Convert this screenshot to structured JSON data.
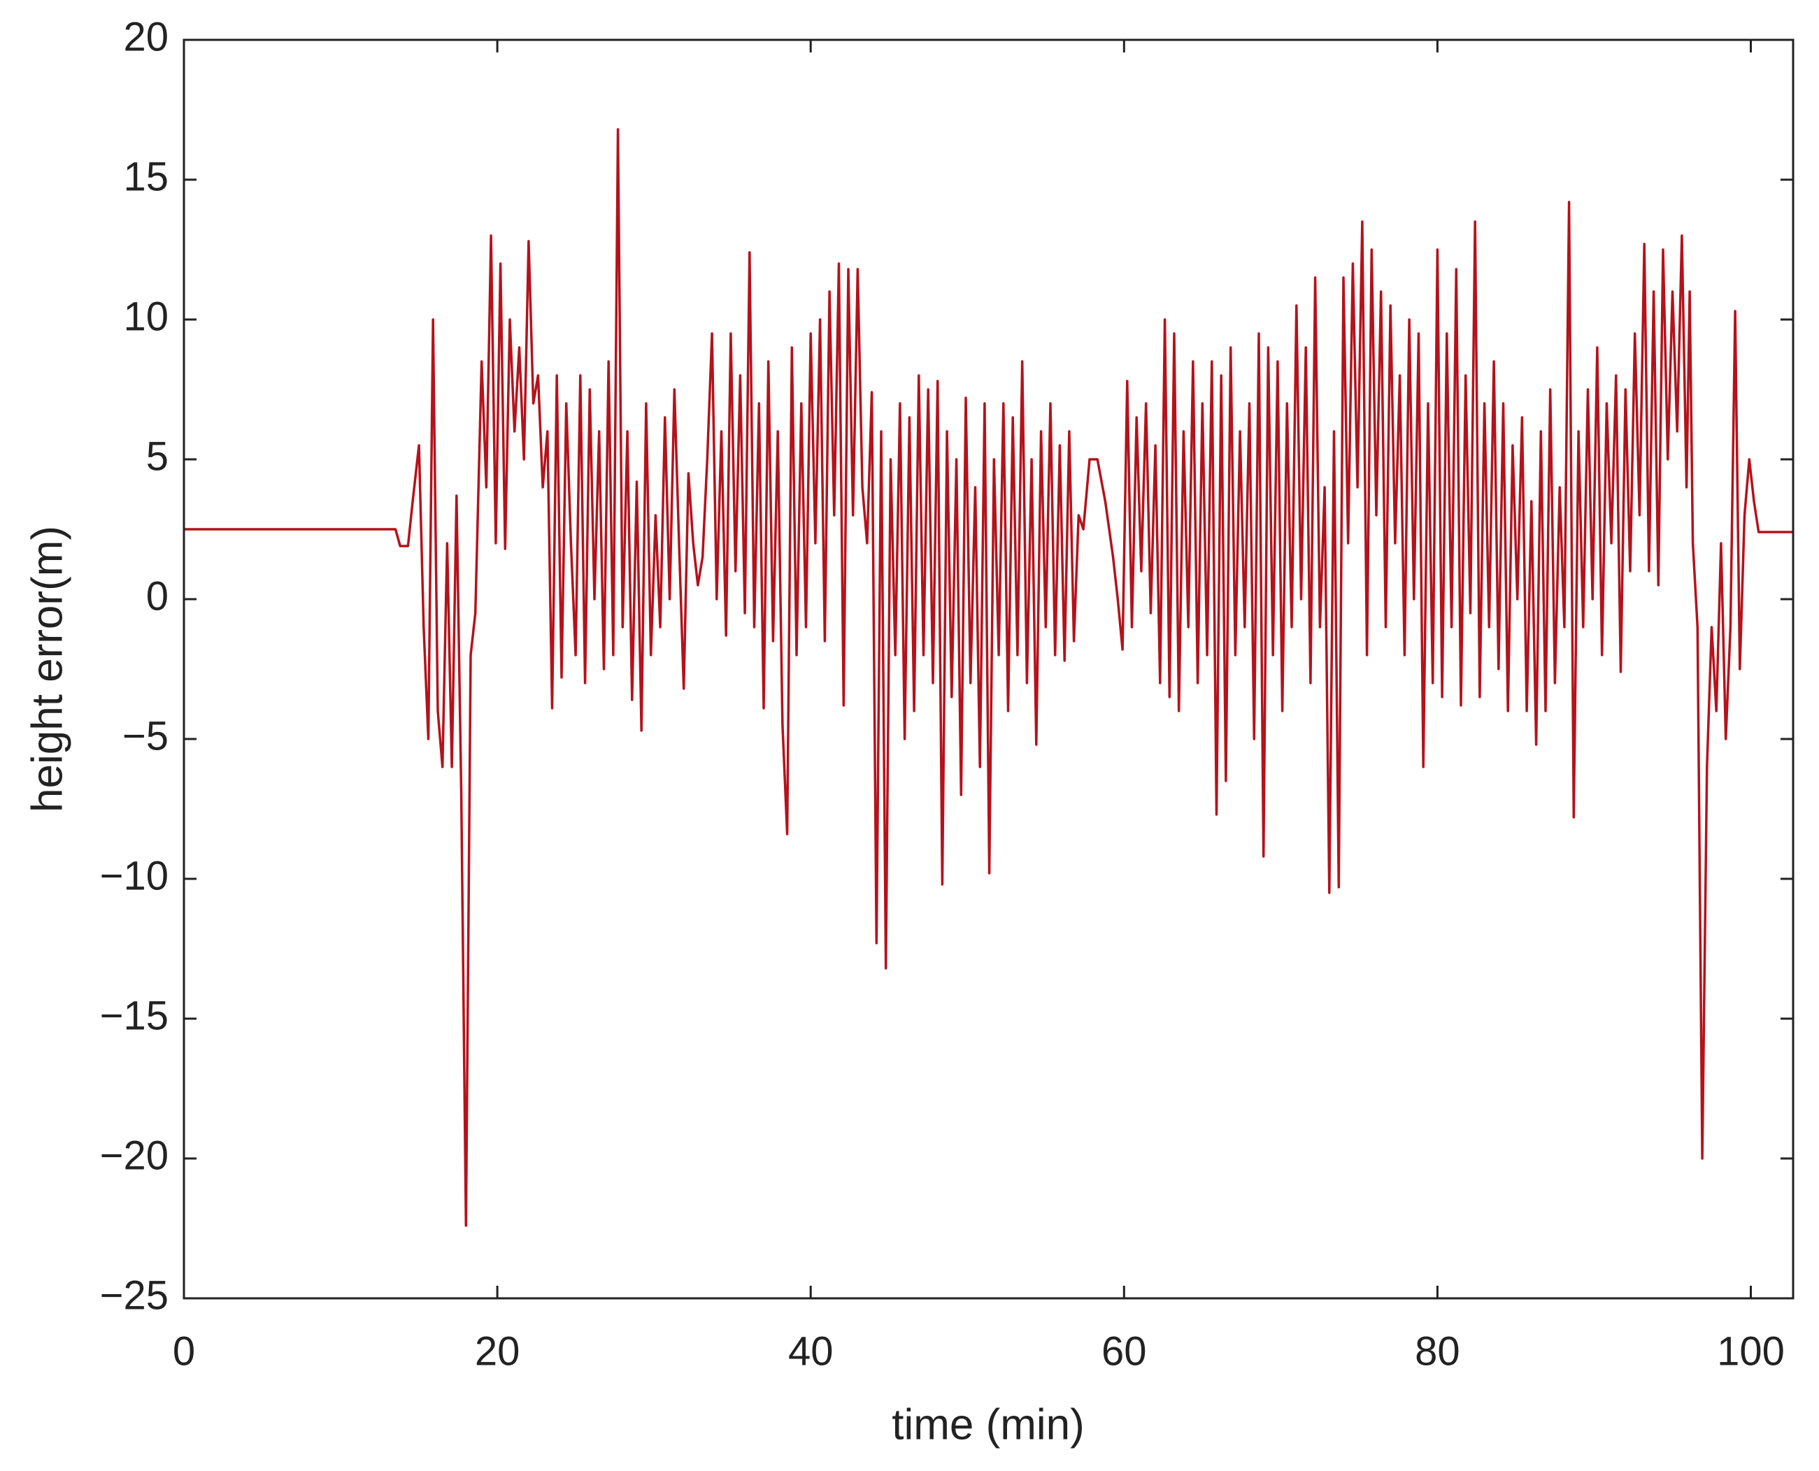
{
  "chart_data": {
    "type": "line",
    "xlabel": "time (min)",
    "ylabel": "height error(m)",
    "xlim": [
      0,
      102.7
    ],
    "ylim": [
      -25,
      20
    ],
    "xticks": [
      0,
      20,
      40,
      60,
      80,
      100
    ],
    "yticks": [
      {
        "value": -25,
        "label": "−25"
      },
      {
        "value": -20,
        "label": "−20"
      },
      {
        "value": -15,
        "label": "−15"
      },
      {
        "value": -10,
        "label": "−10"
      },
      {
        "value": -5,
        "label": "−5"
      },
      0,
      5,
      10,
      15,
      20
    ],
    "series": [
      {
        "color": "#b5121b",
        "x": [
          0,
          13.5,
          13.8,
          14.3,
          14.6,
          15.0,
          15.3,
          15.6,
          15.9,
          16.2,
          16.5,
          16.8,
          17.1,
          17.4,
          17.7,
          18.0,
          18.3,
          18.6,
          19.0,
          19.3,
          19.6,
          19.9,
          20.2,
          20.5,
          20.8,
          21.1,
          21.4,
          21.7,
          22.0,
          22.3,
          22.6,
          22.9,
          23.2,
          23.5,
          23.8,
          24.1,
          24.4,
          24.7,
          25.0,
          25.3,
          25.6,
          25.9,
          26.2,
          26.5,
          26.8,
          27.1,
          27.4,
          27.7,
          28.0,
          28.3,
          28.6,
          28.9,
          29.2,
          29.5,
          29.8,
          30.1,
          30.4,
          30.7,
          31.0,
          31.3,
          31.6,
          31.9,
          32.2,
          32.5,
          32.8,
          33.1,
          33.4,
          33.7,
          34.0,
          34.3,
          34.6,
          34.9,
          35.2,
          35.5,
          35.8,
          36.1,
          36.4,
          36.7,
          37.0,
          37.3,
          37.6,
          37.9,
          38.2,
          38.5,
          38.8,
          39.1,
          39.4,
          39.7,
          40.0,
          40.3,
          40.6,
          40.9,
          41.2,
          41.5,
          41.8,
          42.1,
          42.4,
          42.7,
          43.0,
          43.3,
          43.6,
          43.9,
          44.2,
          44.5,
          44.8,
          45.1,
          45.4,
          45.7,
          46.0,
          46.3,
          46.6,
          46.9,
          47.2,
          47.5,
          47.8,
          48.1,
          48.4,
          48.7,
          49.0,
          49.3,
          49.6,
          49.9,
          50.2,
          50.5,
          50.8,
          51.1,
          51.4,
          51.7,
          52.0,
          52.3,
          52.6,
          52.9,
          53.2,
          53.5,
          53.8,
          54.1,
          54.4,
          54.7,
          55.0,
          55.3,
          55.6,
          55.9,
          56.2,
          56.5,
          56.8,
          57.1,
          57.4,
          57.8,
          58.3,
          58.8,
          59.3,
          59.6,
          59.9,
          60.2,
          60.5,
          60.8,
          61.1,
          61.4,
          61.7,
          62.0,
          62.3,
          62.6,
          62.9,
          63.2,
          63.5,
          63.8,
          64.1,
          64.4,
          64.7,
          65.0,
          65.3,
          65.6,
          65.9,
          66.2,
          66.5,
          66.8,
          67.1,
          67.4,
          67.7,
          68.0,
          68.3,
          68.6,
          68.9,
          69.2,
          69.5,
          69.8,
          70.1,
          70.4,
          70.7,
          71.0,
          71.3,
          71.6,
          71.9,
          72.2,
          72.5,
          72.8,
          73.1,
          73.4,
          73.7,
          74.0,
          74.3,
          74.6,
          74.9,
          75.2,
          75.5,
          75.8,
          76.1,
          76.4,
          76.7,
          77.0,
          77.3,
          77.6,
          77.9,
          78.2,
          78.5,
          78.8,
          79.1,
          79.4,
          79.7,
          80.0,
          80.3,
          80.6,
          80.9,
          81.2,
          81.5,
          81.8,
          82.1,
          82.4,
          82.7,
          83.0,
          83.3,
          83.6,
          83.9,
          84.2,
          84.5,
          84.8,
          85.1,
          85.4,
          85.7,
          86.0,
          86.3,
          86.6,
          86.9,
          87.2,
          87.5,
          87.8,
          88.1,
          88.4,
          88.7,
          89.0,
          89.3,
          89.6,
          89.9,
          90.2,
          90.5,
          90.8,
          91.1,
          91.4,
          91.7,
          92.0,
          92.3,
          92.6,
          92.9,
          93.2,
          93.5,
          93.8,
          94.1,
          94.4,
          94.7,
          95.0,
          95.3,
          95.6,
          95.9,
          96.1,
          96.3,
          96.6,
          96.9,
          97.2,
          97.5,
          97.8,
          98.1,
          98.4,
          98.7,
          99.0,
          99.3,
          99.6,
          99.9,
          100.2,
          100.5,
          102.7
        ],
        "values": [
          2.5,
          2.5,
          1.9,
          1.9,
          3.5,
          5.5,
          -1,
          -5,
          10,
          -4,
          -6,
          2,
          -6,
          3.7,
          -7,
          -22.4,
          -2,
          -0.5,
          8.5,
          4,
          13,
          2,
          12,
          1.8,
          10,
          6,
          9,
          5,
          12.8,
          7,
          8,
          4,
          6,
          -3.9,
          8,
          -2.8,
          7,
          2,
          -2,
          8,
          -3,
          7.5,
          0,
          6,
          -2.5,
          8.5,
          -2,
          16.8,
          -1,
          6,
          -3.6,
          4.2,
          -4.7,
          7,
          -2,
          3,
          -1,
          6.5,
          0,
          7.5,
          2,
          -3.2,
          4.5,
          2,
          0.5,
          1.5,
          5,
          9.5,
          0,
          6,
          -1.3,
          9.5,
          1,
          8,
          -0.5,
          12.4,
          -1,
          7,
          -3.9,
          8.5,
          -1.5,
          6,
          -4.5,
          -8.4,
          9,
          -2,
          7,
          -1,
          9.5,
          2,
          10,
          -1.5,
          11,
          3,
          12,
          -3.8,
          11.8,
          3,
          11.8,
          4,
          2,
          7.4,
          -12.3,
          6,
          -13.2,
          5,
          -2,
          7,
          -5,
          6.5,
          -4,
          8,
          -2,
          7.5,
          -3,
          7.8,
          -10.2,
          6,
          -3.5,
          5,
          -7,
          7.2,
          -3,
          4,
          -6,
          7,
          -9.8,
          5,
          -2,
          7,
          -4,
          6.5,
          -2,
          8.5,
          -3,
          5,
          -5.2,
          6,
          -1,
          7,
          -2,
          5.5,
          -2.2,
          6,
          -1.5,
          3,
          2.5,
          5,
          5,
          3.5,
          1.5,
          0,
          -1.8,
          7.8,
          -1,
          6.5,
          1,
          7,
          -0.5,
          5.5,
          -3,
          10,
          -3.5,
          9.5,
          -4,
          6,
          -1,
          8.5,
          -3,
          7,
          -2,
          8.5,
          -7.7,
          8,
          -6.5,
          9,
          -2,
          6,
          -1,
          7,
          -5,
          9.5,
          -9.2,
          9,
          -2,
          8.5,
          -4,
          7,
          -1,
          10.5,
          0,
          9,
          -3,
          11.5,
          -1,
          4,
          -10.5,
          6,
          -10.3,
          11.5,
          2,
          12,
          4,
          13.5,
          -2,
          12.5,
          3,
          11,
          -1,
          10.5,
          2,
          8,
          -2,
          10,
          0,
          9.5,
          -6,
          7,
          -3,
          12.5,
          -3.5,
          9.5,
          -1,
          11.8,
          -3.8,
          8,
          -0.5,
          13.5,
          -3.5,
          7,
          -1,
          8.5,
          -2.5,
          7,
          -4,
          5.5,
          0,
          6.5,
          -4,
          3.5,
          -5.2,
          6,
          -4,
          7.5,
          -3,
          4,
          -1,
          14.2,
          -7.8,
          6,
          -1,
          7.5,
          0,
          9,
          -2,
          7,
          2,
          8,
          -2.6,
          7.5,
          1,
          9.5,
          3,
          12.7,
          1,
          11,
          0.5,
          12.5,
          5,
          11,
          6,
          13,
          4,
          11,
          2,
          -1,
          -20,
          -6,
          -1,
          -4,
          2,
          -5,
          -1,
          10.3,
          -2.5,
          3,
          5,
          3.5,
          2.4,
          2.4
        ]
      }
    ]
  }
}
